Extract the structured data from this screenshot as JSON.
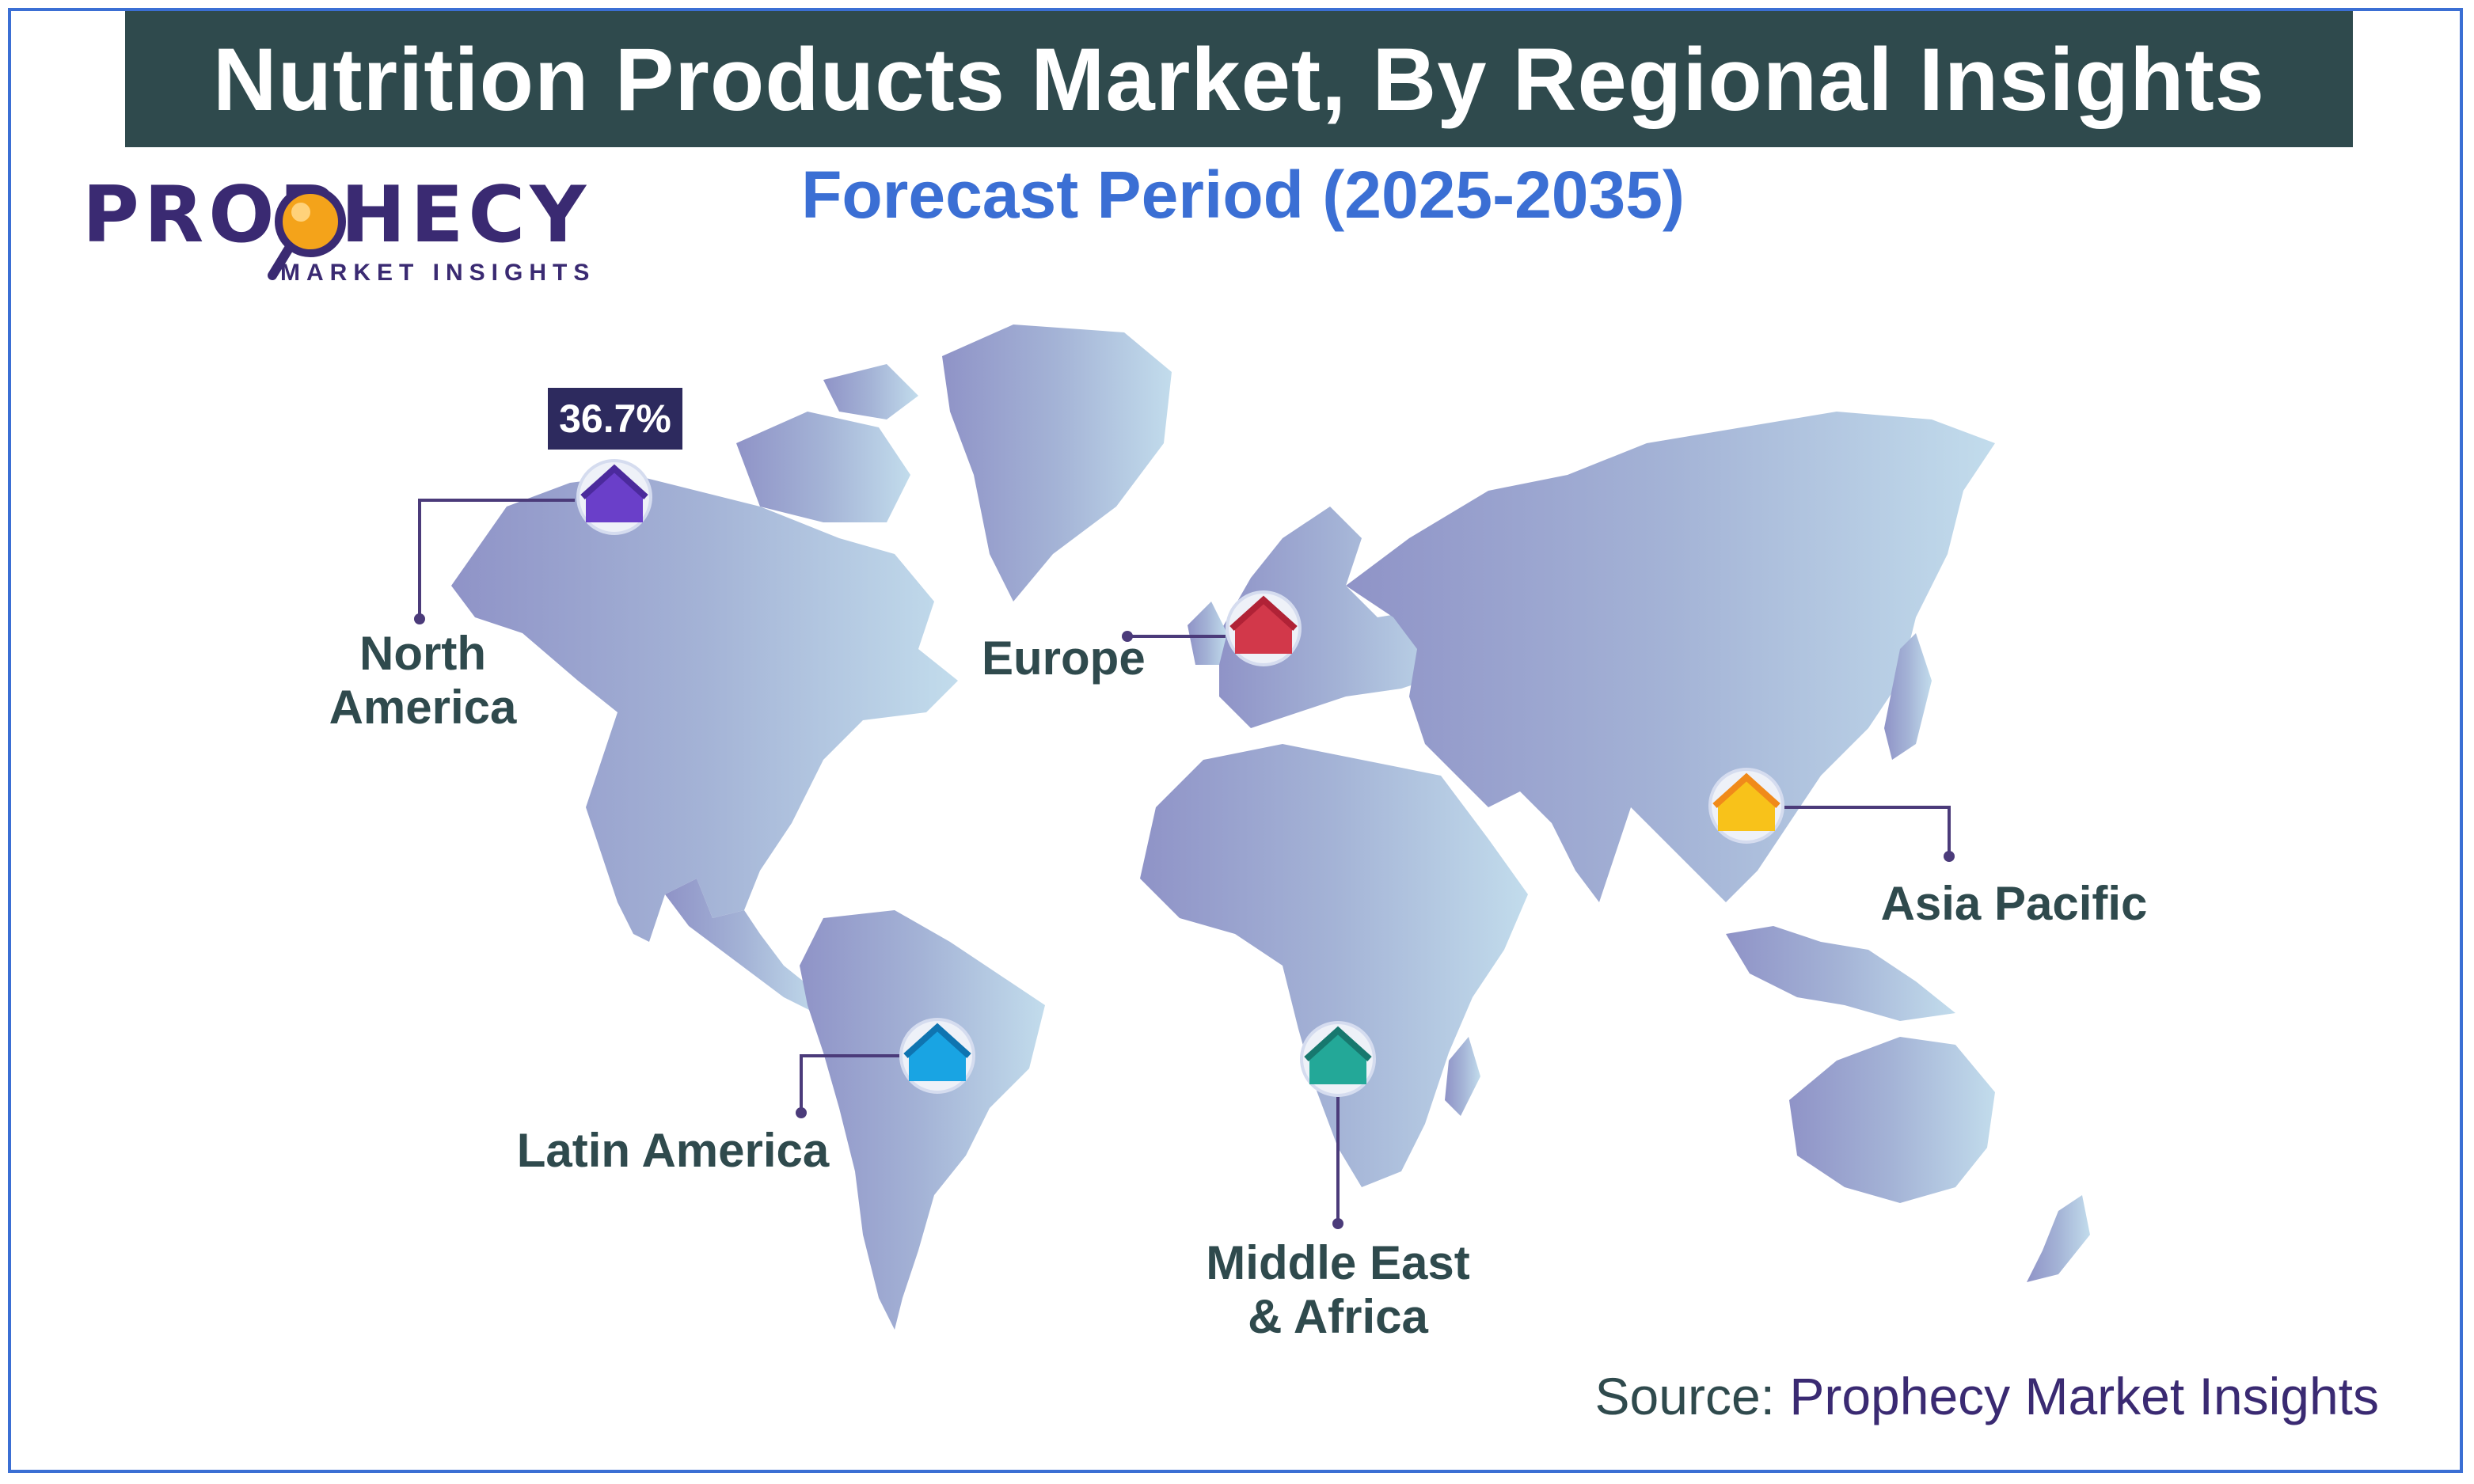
{
  "title": "Nutrition Products Market, By Regional Insights",
  "subtitle": "Forecast Period (2025-2035)",
  "logo": {
    "main": "PROPHECY",
    "sub": "MARKET INSIGHTS"
  },
  "regions": [
    {
      "name": "North America",
      "line1": "North",
      "line2": "America",
      "color": "#6a3fc9",
      "share": "36.7%"
    },
    {
      "name": "Europe",
      "color": "#d2384a"
    },
    {
      "name": "Asia Pacific",
      "color": "#f4a31a"
    },
    {
      "name": "Latin America",
      "color": "#19a4e3"
    },
    {
      "name": "Middle East & Africa",
      "line1": "Middle East",
      "line2": "& Africa",
      "color": "#23a898"
    }
  ],
  "source": {
    "prefix": "Source: ",
    "brand": "Prophecy Market Insights"
  }
}
